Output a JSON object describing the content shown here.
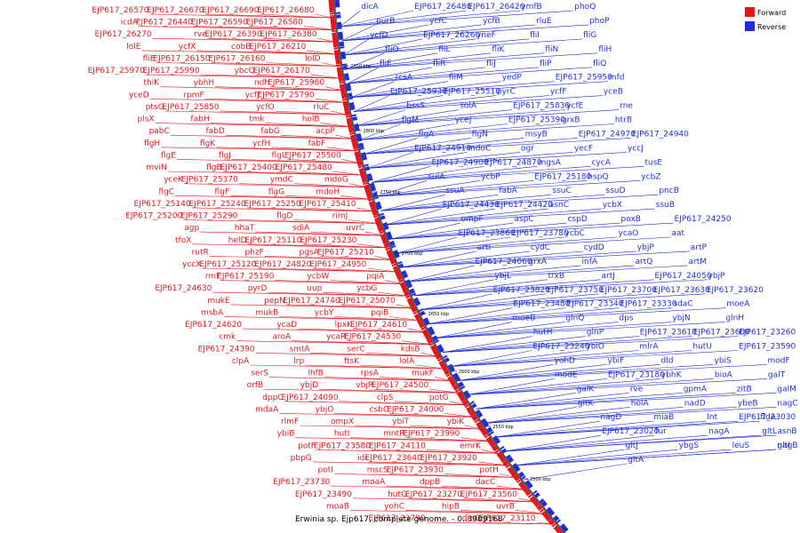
{
  "colors": {
    "forward": "#e8141b",
    "reverse": "#1f2dde",
    "backbone": "#555555"
  },
  "legend": {
    "forward_label": "Forward",
    "reverse_label": "Reverse"
  },
  "caption": "Erwinia sp. Ejp617, complete genome. - 0..3909168",
  "scale_ticks": [
    "2850 kbp",
    "2800 kbp",
    "2750 kbp",
    "2700 kbp",
    "2650 kbp",
    "2600 kbp",
    "2550 kbp",
    "2500 kbp"
  ],
  "genes_forward": [
    "EJP617_26680",
    "EJP617_26690",
    "EJP617_26670",
    "EJP617_26570",
    "EJP617_26580",
    "EJP617_26590",
    "EJP617_26440",
    "icdA",
    "EJP617_26380",
    "EJP617_26390",
    "rve",
    "EJP617_26270",
    "EJP617_26210",
    "cobB",
    "ycfX",
    "lolE",
    "lolD",
    "EJP617_26160",
    "EJP617_26150",
    "fliE",
    "EJP617_26170",
    "ybcQ",
    "EJP617_25990",
    "EJP617_25970",
    "EJP617_25980",
    "ndh",
    "ybhH",
    "thiK",
    "EJP617_25790",
    "ycfJ",
    "rpmF",
    "yceD",
    "rluC",
    "ycfO",
    "EJP617_25850",
    "ptsG",
    "holB",
    "tmk",
    "fabH",
    "plsX",
    "acpP",
    "fabG",
    "fabD",
    "pabC",
    "fabF",
    "ycfH",
    "flgK",
    "flgH",
    "EJP617_25500",
    "flgL",
    "flgJ",
    "flgE",
    "EJP617_25480",
    "EJP617_25400",
    "flgB",
    "mviN",
    "mdoG",
    "ymdC",
    "EJP617_25370",
    "yceK",
    "mdoH",
    "flgG",
    "flgF",
    "flgC",
    "EJP617_25410",
    "EJP617_25250",
    "EJP617_25240",
    "EJP617_25140",
    "rimJ",
    "flgD",
    "EJP617_25290",
    "EJP617_25200",
    "uvrC",
    "sdiA",
    "hhaT",
    "agp",
    "EJP617_25230",
    "EJP617_25110",
    "helD",
    "tfoX",
    "EJP617_25210",
    "pgsA",
    "phzF",
    "rutR",
    "EJP617_24950",
    "EJP617_24820",
    "EJP617_25120",
    "yccX",
    "pqiA",
    "ycbW",
    "EJP617_25190",
    "rmf",
    "ycbG",
    "uup",
    "pyrD",
    "EJP617_24630",
    "EJP617_25070",
    "EJP617_24740",
    "pepN",
    "mukE",
    "pqiB",
    "ycbY",
    "mukB",
    "msbA",
    "EJP617_24610",
    "lpxK",
    "ycaD",
    "EJP617_24620",
    "EJP617_24530",
    "ycaR",
    "aroA",
    "cmk",
    "kdsB",
    "serC",
    "smtA",
    "EJP617_24390",
    "lolA",
    "ftsK",
    "lrp",
    "clpA",
    "mukF",
    "rpsA",
    "lhfB",
    "serS",
    "EJP617_24500",
    "vbjR",
    "ybjD",
    "orfB",
    "potG",
    "clpS",
    "EJP617_24090",
    "dppC",
    "EJP617_24000",
    "csbC",
    "ybjO",
    "mdaA",
    "ybiK",
    "ybiT",
    "ompX",
    "rlmF",
    "EJP617_23990",
    "mntR",
    "hutI",
    "ybiB",
    "emrK",
    "EJP617_24110",
    "EJP617_23580",
    "potF",
    "EJP617_23920",
    "EJP617_23640",
    "idi",
    "pbpG",
    "potH",
    "EJP617_23930",
    "mscS",
    "potI",
    "dacC",
    "dppB",
    "moaA",
    "EJP617_23730",
    "EJP617_23560",
    "EJP617_23270",
    "hutG",
    "EJP617_23490",
    "uvrB",
    "hipB",
    "yohC",
    "moaB",
    "EJP617_23110",
    "dinG",
    "EJP617_23790"
  ],
  "genes_reverse": [
    "dicA",
    "EJP617_26480",
    "EJP617_26420",
    "ymfB",
    "phoQ",
    "purB",
    "ycfC",
    "ycfB",
    "rluE",
    "phoP",
    "ycfD",
    "EJP617_26260",
    "yneF",
    "fliI",
    "fliG",
    "fliO",
    "fliL",
    "fliK",
    "fliN",
    "fliH",
    "fliF",
    "fliR",
    "fliJ",
    "fliP",
    "fliQ",
    "rcsA",
    "fliM",
    "yedP",
    "EJP617_25950",
    "mfd",
    "EJP617_25930",
    "EJP617_25510",
    "pyrC",
    "ycfF",
    "yceB",
    "bssS",
    "solA",
    "EJP617_25830",
    "ycfE",
    "rne",
    "flgM",
    "yceJ",
    "EJP617_25390",
    "grxB",
    "htrB",
    "flgA",
    "flgN",
    "msyB",
    "EJP617_24970",
    "EJP617_24940",
    "EJP617_24910",
    "mdoC",
    "ogr",
    "yecF",
    "yccJ",
    "EJP617_24900",
    "EJP617_24870",
    "mgsA",
    "cycA",
    "tusE",
    "sulA",
    "ycbP",
    "EJP617_25180",
    "hspQ",
    "ycbZ",
    "ssuA",
    "fabA",
    "ssuC",
    "ssuD",
    "pncB",
    "EJP617_24430",
    "EJP617_24420",
    "asnC",
    "ycbX",
    "ssuB",
    "ompF",
    "aspC",
    "cspD",
    "poxB",
    "EJP617_24250",
    "EJP617_23860",
    "EJP617_23780",
    "ycbC",
    "ycaO",
    "aat",
    "artI",
    "cydC",
    "cydD",
    "ybjP",
    "artP",
    "EJP617_24060",
    "grxA",
    "infA",
    "artQ",
    "artM",
    "ybjL",
    "trxB",
    "artJ",
    "EJP617_24050",
    "ybjP",
    "EJP617_23820",
    "EJP617_23750",
    "EJP617_23700",
    "EJP617_23630",
    "EJP617_23620",
    "EJP617_23480",
    "EJP617_23340",
    "EJP617_23330",
    "sdaC",
    "moeA",
    "moeB",
    "glnQ",
    "dps",
    "ybjN",
    "glnH",
    "hutH",
    "glnP",
    "EJP617_23610",
    "EJP617_23600",
    "EJP617_23260",
    "EJP617_23240",
    "ybiO",
    "mlrA",
    "hutU",
    "EJP617_23590",
    "yohD",
    "ybiF",
    "dld",
    "ybiS",
    "modF",
    "modE",
    "EJP617_23180",
    "ybhK",
    "bioA",
    "galT",
    "galK",
    "rve",
    "gpmA",
    "zitB",
    "galM",
    "gltK",
    "holA",
    "nadD",
    "ybeB",
    "nagC",
    "nagD",
    "miaB",
    "lnt",
    "fldA",
    "EJP617_23030",
    "EJP617_23020",
    "fur",
    "nagA",
    "gltL",
    "asnB",
    "gltJ",
    "ybgS",
    "leuS",
    "nagB",
    "gltI",
    "gltA"
  ]
}
